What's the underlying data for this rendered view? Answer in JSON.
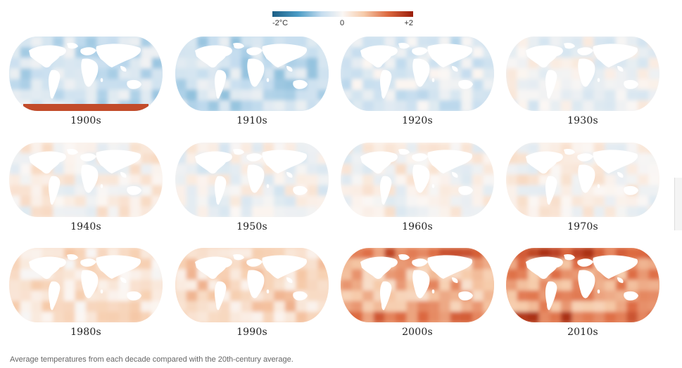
{
  "legend": {
    "min_label": "-2°C",
    "mid_label": "0",
    "max_label": "+2",
    "colors": [
      "#1b5e85",
      "#4a9bc5",
      "#c5ddef",
      "#fbf7f4",
      "#f6cbaa",
      "#dd6940",
      "#9a1d0a"
    ]
  },
  "maps": [
    {
      "decade": "1900s",
      "anomaly": -0.5
    },
    {
      "decade": "1910s",
      "anomaly": -0.55
    },
    {
      "decade": "1920s",
      "anomaly": -0.35
    },
    {
      "decade": "1930s",
      "anomaly": -0.15
    },
    {
      "decade": "1940s",
      "anomaly": 0.05
    },
    {
      "decade": "1950s",
      "anomaly": -0.1
    },
    {
      "decade": "1960s",
      "anomaly": 0.0
    },
    {
      "decade": "1970s",
      "anomaly": 0.05
    },
    {
      "decade": "1980s",
      "anomaly": 0.3
    },
    {
      "decade": "1990s",
      "anomaly": 0.45
    },
    {
      "decade": "2000s",
      "anomaly": 0.75
    },
    {
      "decade": "2010s",
      "anomaly": 0.95
    }
  ],
  "caption": "Average temperatures from each decade compared with the 20th-century average."
}
